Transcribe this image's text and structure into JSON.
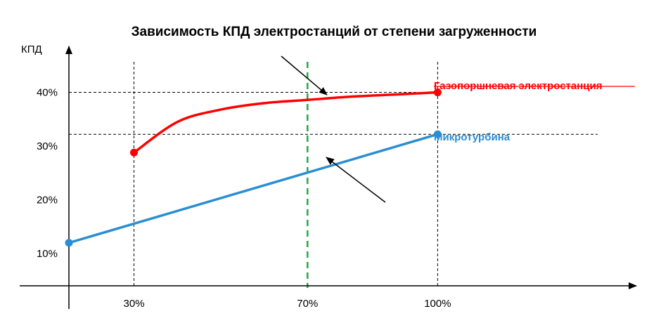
{
  "chart_data": {
    "type": "line",
    "title": "Зависимость КПД электростанций от степени загруженности",
    "ylabel": "КПД",
    "xlabel": "",
    "x_ticks": [
      {
        "value": 30,
        "label": "30%"
      },
      {
        "value": 70,
        "label": "70%"
      },
      {
        "value": 100,
        "label": "100%"
      }
    ],
    "y_ticks": [
      {
        "value": 10,
        "label": "10%"
      },
      {
        "value": 20,
        "label": "20%"
      },
      {
        "value": 30,
        "label": "30%"
      },
      {
        "value": 40,
        "label": "40%"
      }
    ],
    "xlim": [
      15,
      145
    ],
    "ylim": [
      4,
      47
    ],
    "series": [
      {
        "name": "Газопоршневая электростанция",
        "color": "#ff0000",
        "points": [
          [
            30,
            28.8
          ],
          [
            40,
            34.5
          ],
          [
            50,
            36.8
          ],
          [
            60,
            38.0
          ],
          [
            70,
            38.6
          ],
          [
            80,
            39.2
          ],
          [
            90,
            39.6
          ],
          [
            100,
            40.0
          ]
        ],
        "markers": [
          [
            30,
            28.8
          ],
          [
            100,
            40.0
          ]
        ]
      },
      {
        "name": "Микротурбина",
        "color": "#2b8ed2",
        "points": [
          [
            15,
            12.0
          ],
          [
            100,
            32.2
          ]
        ],
        "markers": [
          [
            15,
            12.0
          ],
          [
            100,
            32.2
          ]
        ]
      }
    ],
    "reference_line": {
      "x": 70,
      "color": "#22aa44",
      "style": "dashed"
    },
    "guide_lines": {
      "vertical": [
        30,
        100
      ],
      "horizontal": [
        40,
        32.2
      ]
    },
    "grid": false
  }
}
